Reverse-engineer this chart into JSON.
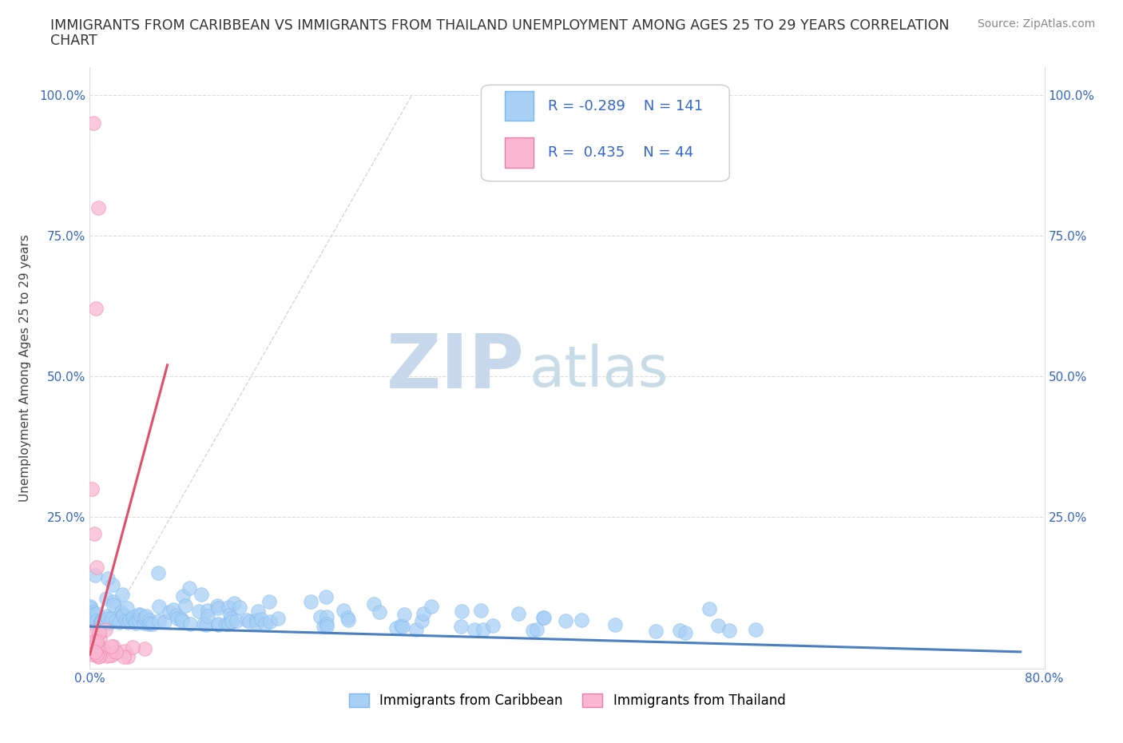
{
  "title_line1": "IMMIGRANTS FROM CARIBBEAN VS IMMIGRANTS FROM THAILAND UNEMPLOYMENT AMONG AGES 25 TO 29 YEARS CORRELATION",
  "title_line2": "CHART",
  "source_text": "Source: ZipAtlas.com",
  "ylabel": "Unemployment Among Ages 25 to 29 years",
  "xlim": [
    0.0,
    0.8
  ],
  "ylim": [
    -0.02,
    1.05
  ],
  "ylim_data": [
    0.0,
    1.0
  ],
  "xticks": [
    0.0,
    0.2,
    0.4,
    0.6,
    0.8
  ],
  "xticklabels": [
    "0.0%",
    "",
    "",
    "",
    "80.0%"
  ],
  "yticks": [
    0.0,
    0.25,
    0.5,
    0.75,
    1.0
  ],
  "yticklabels": [
    "",
    "25.0%",
    "50.0%",
    "75.0%",
    "100.0%"
  ],
  "caribbean_color": "#a8d0f5",
  "caribbean_edge": "#7ab8ef",
  "thailand_color": "#f9b8d0",
  "thailand_edge": "#f07aaa",
  "trend_caribbean_color": "#4a7fc1",
  "trend_thailand_color": "#e0506a",
  "diag_line_color": "#cccccc",
  "watermark_zip_color": "#c8d8ec",
  "watermark_atlas_color": "#c8dce8",
  "R_caribbean": -0.289,
  "N_caribbean": 141,
  "R_thailand": 0.435,
  "N_thailand": 44,
  "legend_text_color": "#3366cc",
  "grid_color": "#dddddd",
  "background_color": "#ffffff",
  "title_fontsize": 12.5,
  "axis_label_fontsize": 11,
  "tick_fontsize": 11,
  "legend_fontsize": 13,
  "source_fontsize": 10
}
